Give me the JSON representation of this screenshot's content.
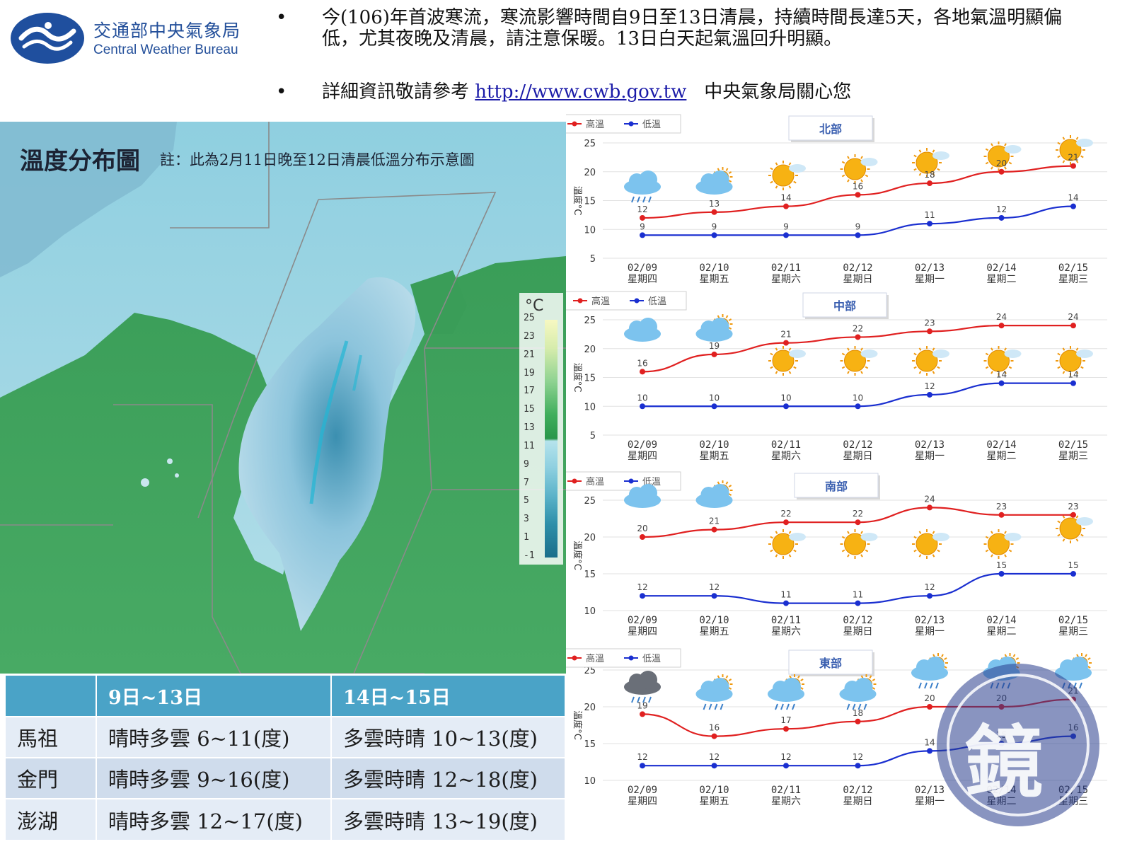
{
  "header": {
    "logo_cn": "交通部中央氣象局",
    "logo_en": "Central Weather Bureau",
    "bullets": [
      "今(106)年首波寒流，寒流影響時間自9日至13日清晨，持續時間長達5天，各地氣溫明顯偏低，尤其夜晚及清晨，請注意保暖。13日白天起氣溫回升明顯。",
      "詳細資訊敬請參考"
    ],
    "link_text": "http://www.cwb.gov.tw",
    "bullet2_tail": "中央氣象局關心您"
  },
  "map": {
    "title": "溫度分布圖",
    "note": "註：此為2月11日晚至12日清晨低溫分布示意圖",
    "legend_unit": "°C",
    "legend_ticks": [
      "25",
      "23",
      "21",
      "19",
      "17",
      "15",
      "13",
      "11",
      "9",
      "7",
      "5",
      "3",
      "1",
      "-1"
    ],
    "colors": {
      "sea": "#3a9d58",
      "sea_light": "#b4dfe9",
      "land": "#a8cfe0"
    }
  },
  "table": {
    "headers": [
      "",
      "9日~13日",
      "14日~15日"
    ],
    "rows": [
      [
        "馬祖",
        "晴時多雲 6~11(度)",
        "多雲時晴 10~13(度)"
      ],
      [
        "金門",
        "晴時多雲 9~16(度)",
        "多雲時晴 12~18(度)"
      ],
      [
        "澎湖",
        "晴時多雲 12~17(度)",
        "多雲時晴 13~19(度)"
      ]
    ]
  },
  "watermark_text": "鏡",
  "chart_data": [
    {
      "type": "line",
      "region": "北部",
      "ylabel": "溫度°C",
      "ylim": [
        5,
        25
      ],
      "yticks": [
        5,
        10,
        15,
        20,
        25
      ],
      "categories": [
        "02/09",
        "02/10",
        "02/11",
        "02/12",
        "02/13",
        "02/14",
        "02/15"
      ],
      "weekdays": [
        "星期四",
        "星期五",
        "星期六",
        "星期日",
        "星期一",
        "星期二",
        "星期三"
      ],
      "series": [
        {
          "name": "高溫",
          "color": "#e02020",
          "values": [
            12,
            13,
            14,
            16,
            18,
            20,
            21
          ]
        },
        {
          "name": "低溫",
          "color": "#1a2fd0",
          "values": [
            9,
            9,
            9,
            9,
            11,
            12,
            14
          ]
        }
      ],
      "icons": [
        "rain-cloud-icon",
        "cloud-sun-icon",
        "sun-cloud-icon",
        "sun-cloud-icon",
        "sun-cloud-icon",
        "sun-cloud-icon",
        "sun-cloud-icon"
      ]
    },
    {
      "type": "line",
      "region": "中部",
      "ylabel": "溫度°C",
      "ylim": [
        5,
        25
      ],
      "yticks": [
        5,
        10,
        15,
        20,
        25
      ],
      "categories": [
        "02/09",
        "02/10",
        "02/11",
        "02/12",
        "02/13",
        "02/14",
        "02/15"
      ],
      "weekdays": [
        "星期四",
        "星期五",
        "星期六",
        "星期日",
        "星期一",
        "星期二",
        "星期三"
      ],
      "series": [
        {
          "name": "高溫",
          "color": "#e02020",
          "values": [
            16,
            19,
            21,
            22,
            23,
            24,
            24
          ]
        },
        {
          "name": "低溫",
          "color": "#1a2fd0",
          "values": [
            10,
            10,
            10,
            10,
            12,
            14,
            14
          ]
        }
      ],
      "icons": [
        "cloud-icon",
        "cloud-sun-icon",
        "sun-cloud-icon",
        "sun-cloud-icon",
        "sun-cloud-icon",
        "sun-cloud-icon",
        "sun-cloud-icon"
      ]
    },
    {
      "type": "line",
      "region": "南部",
      "ylabel": "溫度°C",
      "ylim": [
        10,
        25
      ],
      "yticks": [
        10,
        15,
        20,
        25
      ],
      "categories": [
        "02/09",
        "02/10",
        "02/11",
        "02/12",
        "02/13",
        "02/14",
        "02/15"
      ],
      "weekdays": [
        "星期四",
        "星期五",
        "星期六",
        "星期日",
        "星期一",
        "星期二",
        "星期三"
      ],
      "series": [
        {
          "name": "高溫",
          "color": "#e02020",
          "values": [
            20,
            21,
            22,
            22,
            24,
            23,
            23
          ]
        },
        {
          "name": "低溫",
          "color": "#1a2fd0",
          "values": [
            12,
            12,
            11,
            11,
            12,
            15,
            15
          ]
        }
      ],
      "icons": [
        "cloud-icon",
        "cloud-sun-icon",
        "sun-cloud-icon",
        "sun-cloud-icon",
        "sun-cloud-icon",
        "sun-cloud-icon",
        "sun-cloud-icon"
      ]
    },
    {
      "type": "line",
      "region": "東部",
      "ylabel": "溫度°C",
      "ylim": [
        10,
        25
      ],
      "yticks": [
        10,
        15,
        20,
        25
      ],
      "categories": [
        "02/09",
        "02/10",
        "02/11",
        "02/12",
        "02/13",
        "02/14",
        "02/15"
      ],
      "weekdays": [
        "星期四",
        "星期五",
        "星期六",
        "星期日",
        "星期一",
        "星期二",
        "星期三"
      ],
      "series": [
        {
          "name": "高溫",
          "color": "#e02020",
          "values": [
            19,
            16,
            17,
            18,
            20,
            20,
            21
          ]
        },
        {
          "name": "低溫",
          "color": "#1a2fd0",
          "values": [
            12,
            12,
            12,
            12,
            14,
            15,
            16
          ]
        }
      ],
      "icons": [
        "dark-rain-cloud-icon",
        "rain-sun-cloud-icon",
        "rain-sun-cloud-icon",
        "rain-sun-cloud-icon",
        "rain-sun-cloud-icon",
        "rain-sun-cloud-icon",
        "rain-sun-cloud-icon"
      ]
    }
  ]
}
